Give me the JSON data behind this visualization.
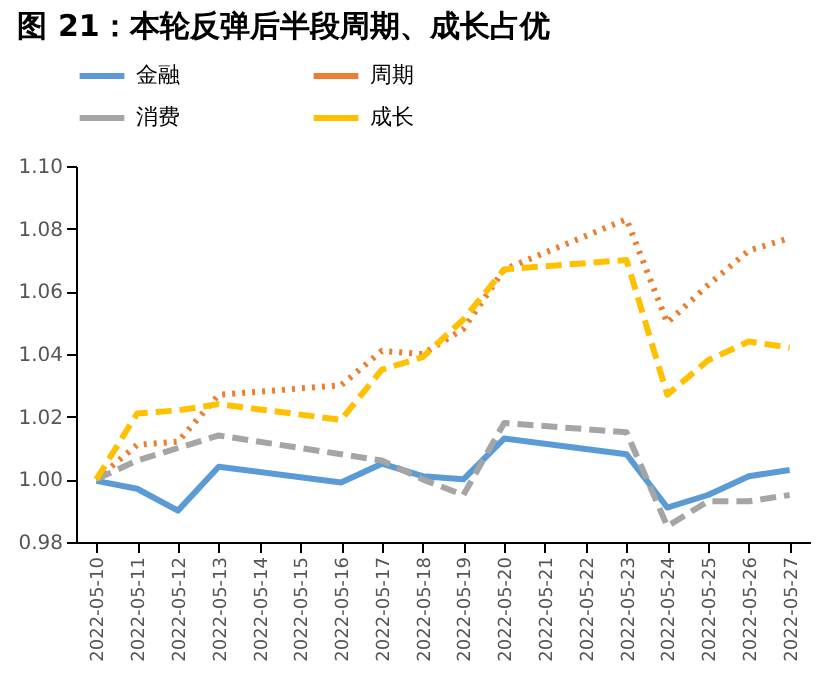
{
  "chart_data": {
    "type": "line",
    "title": "图 21：本轮反弹后半段周期、成长占优",
    "x": [
      "2022-05-10",
      "2022-05-11",
      "2022-05-12",
      "2022-05-13",
      "2022-05-16",
      "2022-05-17",
      "2022-05-18",
      "2022-05-19",
      "2022-05-20",
      "2022-05-23",
      "2022-05-24",
      "2022-05-25",
      "2022-05-26",
      "2022-05-27"
    ],
    "series": [
      {
        "name": "金融",
        "color": "#5b9bd5",
        "line_style": "solid",
        "values": [
          0.9995,
          0.997,
          0.99,
          1.004,
          0.999,
          1.005,
          1.001,
          1.0,
          1.013,
          1.008,
          0.991,
          0.995,
          1.001,
          1.003
        ]
      },
      {
        "name": "周期",
        "color": "#ed7d31",
        "line_style": "dotted",
        "values": [
          1.0,
          1.011,
          1.012,
          1.027,
          1.03,
          1.041,
          1.04,
          1.048,
          1.067,
          1.083,
          1.05,
          1.062,
          1.073,
          1.077
        ]
      },
      {
        "name": "消费",
        "color": "#a5a5a5",
        "line_style": "dashed",
        "values": [
          1.0,
          1.006,
          1.01,
          1.014,
          1.008,
          1.006,
          1.0,
          0.995,
          1.018,
          1.015,
          0.985,
          0.993,
          0.993,
          0.995
        ]
      },
      {
        "name": "成长",
        "color": "#ffc000",
        "line_style": "dashed",
        "values": [
          1.0,
          1.021,
          1.022,
          1.024,
          1.019,
          1.035,
          1.039,
          1.051,
          1.067,
          1.07,
          1.027,
          1.038,
          1.044,
          1.042
        ]
      }
    ],
    "xlim": [
      "2022-05-09T12:00",
      "2022-05-27T12:00"
    ],
    "xticks": [
      "2022-05-10",
      "2022-05-11",
      "2022-05-12",
      "2022-05-13",
      "2022-05-14",
      "2022-05-15",
      "2022-05-16",
      "2022-05-17",
      "2022-05-18",
      "2022-05-19",
      "2022-05-20",
      "2022-05-21",
      "2022-05-22",
      "2022-05-23",
      "2022-05-24",
      "2022-05-25",
      "2022-05-26",
      "2022-05-27"
    ],
    "ylim": [
      0.98,
      1.1
    ],
    "yticks": [
      {
        "value": 0.98,
        "label": "0.98"
      },
      {
        "value": 1.0,
        "label": "1.00"
      },
      {
        "value": 1.02,
        "label": "1.02"
      },
      {
        "value": 1.04,
        "label": "1.04"
      },
      {
        "value": 1.06,
        "label": "1.06"
      },
      {
        "value": 1.08,
        "label": "1.08"
      },
      {
        "value": 1.1,
        "label": "1.10"
      }
    ],
    "grid": false,
    "legend": "top",
    "marker": "none"
  }
}
